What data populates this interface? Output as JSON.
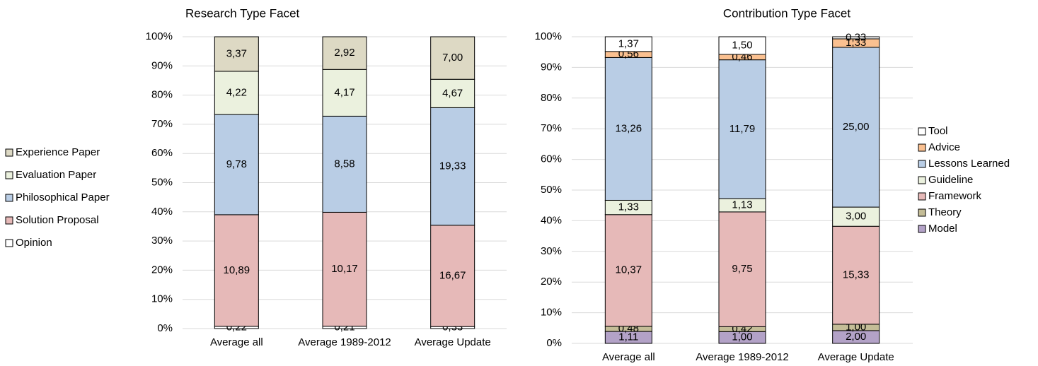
{
  "chart_data": [
    {
      "type": "bar",
      "stack": "percent",
      "title": "Research Type Facet",
      "categories": [
        "Average all",
        "Average 1989-2012",
        "Average Update"
      ],
      "ylim": [
        0,
        100
      ],
      "yticks": [
        {
          "value": 0,
          "label": "0%"
        },
        {
          "value": 10,
          "label": "10%"
        },
        {
          "value": 20,
          "label": "20%"
        },
        {
          "value": 30,
          "label": "30%"
        },
        {
          "value": 40,
          "label": "40%"
        },
        {
          "value": 50,
          "label": "50%"
        },
        {
          "value": 60,
          "label": "60%"
        },
        {
          "value": 70,
          "label": "70%"
        },
        {
          "value": 80,
          "label": "80%"
        },
        {
          "value": 90,
          "label": "90%"
        },
        {
          "value": 100,
          "label": "100%"
        }
      ],
      "grid": true,
      "legend": "left",
      "series": [
        {
          "name": "Opinion",
          "color": "#ffffff",
          "values": [
            0.22,
            0.21,
            0.33
          ],
          "value_labels": [
            "0,22",
            "0,21",
            "0,33"
          ]
        },
        {
          "name": "Solution Proposal",
          "color": "#e6b9b8",
          "values": [
            10.89,
            10.17,
            16.67
          ],
          "value_labels": [
            "10,89",
            "10,17",
            "16,67"
          ]
        },
        {
          "name": "Philosophical Paper",
          "color": "#b9cde5",
          "values": [
            9.78,
            8.58,
            19.33
          ],
          "value_labels": [
            "9,78",
            "8,58",
            "19,33"
          ]
        },
        {
          "name": "Evaluation Paper",
          "color": "#ebf1de",
          "values": [
            4.22,
            4.17,
            4.67
          ],
          "value_labels": [
            "4,22",
            "4,17",
            "4,67"
          ]
        },
        {
          "name": "Experience Paper",
          "color": "#ddd9c4",
          "values": [
            3.37,
            2.92,
            7
          ],
          "value_labels": [
            "3,37",
            "2,92",
            "7,00"
          ]
        }
      ]
    },
    {
      "type": "bar",
      "stack": "percent",
      "title": "Contribution Type Facet",
      "categories": [
        "Average all",
        "Average 1989-2012",
        "Average Update"
      ],
      "ylim": [
        0,
        100
      ],
      "yticks": [
        {
          "value": 0,
          "label": "0%"
        },
        {
          "value": 10,
          "label": "10%"
        },
        {
          "value": 20,
          "label": "20%"
        },
        {
          "value": 30,
          "label": "30%"
        },
        {
          "value": 40,
          "label": "40%"
        },
        {
          "value": 50,
          "label": "50%"
        },
        {
          "value": 60,
          "label": "60%"
        },
        {
          "value": 70,
          "label": "70%"
        },
        {
          "value": 80,
          "label": "80%"
        },
        {
          "value": 90,
          "label": "90%"
        },
        {
          "value": 100,
          "label": "100%"
        }
      ],
      "grid": true,
      "legend": "right",
      "series": [
        {
          "name": "Model",
          "color": "#b3a2c7",
          "values": [
            1.11,
            1,
            2
          ],
          "value_labels": [
            "1,11",
            "1,00",
            "2,00"
          ]
        },
        {
          "name": "Theory",
          "color": "#c4bd97",
          "values": [
            0.48,
            0.42,
            1
          ],
          "value_labels": [
            "0,48",
            "0,42",
            "1,00"
          ]
        },
        {
          "name": "Framework",
          "color": "#e6b9b8",
          "values": [
            10.37,
            9.75,
            15.33
          ],
          "value_labels": [
            "10,37",
            "9,75",
            "15,33"
          ]
        },
        {
          "name": "Guideline",
          "color": "#ebf1de",
          "values": [
            1.33,
            1.13,
            3
          ],
          "value_labels": [
            "1,33",
            "1,13",
            "3,00"
          ]
        },
        {
          "name": "Lessons Learned",
          "color": "#b9cde5",
          "values": [
            13.26,
            11.79,
            25
          ],
          "value_labels": [
            "13,26",
            "11,79",
            "25,00"
          ]
        },
        {
          "name": "Advice",
          "color": "#fac090",
          "values": [
            0.56,
            0.46,
            1.33
          ],
          "value_labels": [
            "0,56",
            "0,46",
            "1,33"
          ]
        },
        {
          "name": "Tool",
          "color": "#ffffff",
          "values": [
            1.37,
            1.5,
            0.33
          ],
          "value_labels": [
            "1,37",
            "1,50",
            "0,33"
          ]
        }
      ]
    }
  ]
}
